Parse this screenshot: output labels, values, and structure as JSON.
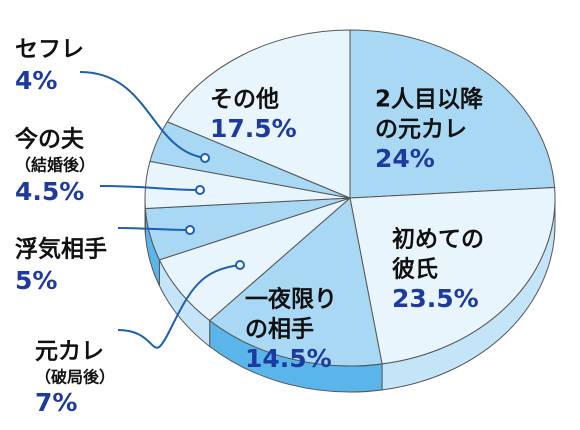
{
  "chart_data": {
    "type": "pie",
    "categories": [
      [
        "2人目以降",
        "の元カレ"
      ],
      [
        "初めての",
        "彼氏"
      ],
      [
        "一夜限り",
        "の相手"
      ],
      [
        "元カレ",
        "（破局後）"
      ],
      [
        "浮気相手"
      ],
      [
        "今の夫",
        "（結婚後）"
      ],
      [
        "セフレ"
      ],
      [
        "その他"
      ]
    ],
    "values": [
      24,
      23.5,
      14.5,
      7,
      5,
      4.5,
      4,
      17.5
    ],
    "value_labels": [
      "24%",
      "23.5%",
      "14.5%",
      "7%",
      "5%",
      "4.5%",
      "4%",
      "17.5%"
    ],
    "colors": [
      "#a8d8f4",
      "#e8f5fd",
      "#a8d8f4",
      "#e8f5fd",
      "#a8d8f4",
      "#e8f5fd",
      "#a8d8f4",
      "#e8f5fd"
    ],
    "side_colors": [
      "#5ab6ea",
      "#c4e5f8",
      "#5ab6ea",
      "#c4e5f8",
      "#5ab6ea",
      "#c4e5f8",
      "#5ab6ea",
      "#c4e5f8"
    ]
  }
}
